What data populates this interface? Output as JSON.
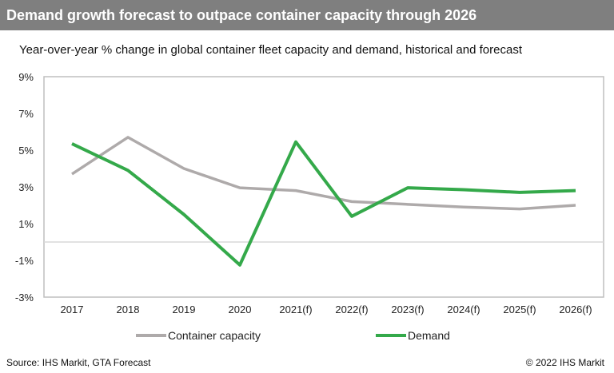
{
  "title": "Demand growth forecast to outpace container capacity through 2026",
  "source": "Source: IHS Markit, GTA Forecast",
  "copyright": "© 2022 IHS Markit",
  "chart_data": {
    "type": "line",
    "subtitle": "Year-over-year % change in global container fleet capacity and demand, historical and forecast",
    "categories": [
      "2017",
      "2018",
      "2019",
      "2020",
      "2021(f)",
      "2022(f)",
      "2023(f)",
      "2024(f)",
      "2025(f)",
      "2026(f)"
    ],
    "yticks": [
      "9%",
      "7%",
      "5%",
      "3%",
      "1%",
      "-1%",
      "-3%"
    ],
    "ylim": [
      -3,
      9
    ],
    "legend_placement": "bottom",
    "series": [
      {
        "name": "Container capacity",
        "color": "#aeaaaa",
        "values": [
          3.7,
          5.7,
          4.0,
          2.95,
          2.8,
          2.2,
          2.05,
          1.9,
          1.8,
          2.0
        ]
      },
      {
        "name": "Demand",
        "color": "#34a94a",
        "values": [
          5.35,
          3.9,
          1.5,
          -1.25,
          5.45,
          1.4,
          2.95,
          2.85,
          2.7,
          2.8
        ]
      }
    ]
  }
}
